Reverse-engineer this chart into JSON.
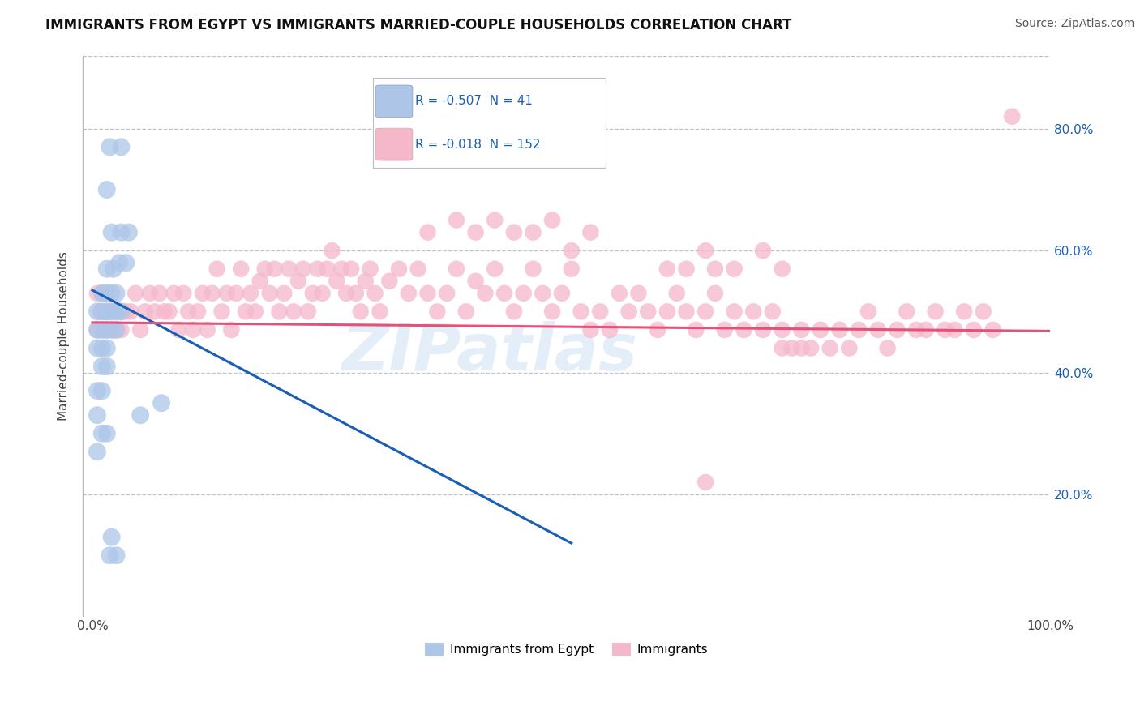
{
  "title": "IMMIGRANTS FROM EGYPT VS IMMIGRANTS MARRIED-COUPLE HOUSEHOLDS CORRELATION CHART",
  "source": "Source: ZipAtlas.com",
  "ylabel": "Married-couple Households",
  "legend_label1": "Immigrants from Egypt",
  "legend_label2": "Immigrants",
  "R1": "-0.507",
  "N1": "41",
  "R2": "-0.018",
  "N2": "152",
  "watermark": "ZIPatlas",
  "blue_color": "#adc6e8",
  "pink_color": "#f5b8cb",
  "blue_line_color": "#1a5fb4",
  "pink_line_color": "#e8507a",
  "legend_text_color": "#1a5fb4",
  "blue_scatter": [
    [
      0.018,
      0.77
    ],
    [
      0.03,
      0.77
    ],
    [
      0.015,
      0.7
    ],
    [
      0.02,
      0.63
    ],
    [
      0.03,
      0.63
    ],
    [
      0.038,
      0.63
    ],
    [
      0.015,
      0.57
    ],
    [
      0.022,
      0.57
    ],
    [
      0.028,
      0.58
    ],
    [
      0.035,
      0.58
    ],
    [
      0.01,
      0.53
    ],
    [
      0.015,
      0.53
    ],
    [
      0.02,
      0.53
    ],
    [
      0.025,
      0.53
    ],
    [
      0.005,
      0.5
    ],
    [
      0.01,
      0.5
    ],
    [
      0.015,
      0.5
    ],
    [
      0.02,
      0.5
    ],
    [
      0.025,
      0.5
    ],
    [
      0.03,
      0.5
    ],
    [
      0.005,
      0.47
    ],
    [
      0.01,
      0.47
    ],
    [
      0.015,
      0.47
    ],
    [
      0.02,
      0.47
    ],
    [
      0.025,
      0.47
    ],
    [
      0.005,
      0.44
    ],
    [
      0.01,
      0.44
    ],
    [
      0.015,
      0.44
    ],
    [
      0.01,
      0.41
    ],
    [
      0.015,
      0.41
    ],
    [
      0.005,
      0.37
    ],
    [
      0.01,
      0.37
    ],
    [
      0.005,
      0.33
    ],
    [
      0.01,
      0.3
    ],
    [
      0.015,
      0.3
    ],
    [
      0.005,
      0.27
    ],
    [
      0.018,
      0.1
    ],
    [
      0.05,
      0.33
    ],
    [
      0.072,
      0.35
    ],
    [
      0.02,
      0.13
    ],
    [
      0.025,
      0.1
    ]
  ],
  "pink_scatter": [
    [
      0.008,
      0.5
    ],
    [
      0.015,
      0.5
    ],
    [
      0.02,
      0.5
    ],
    [
      0.025,
      0.5
    ],
    [
      0.03,
      0.5
    ],
    [
      0.005,
      0.47
    ],
    [
      0.01,
      0.47
    ],
    [
      0.015,
      0.47
    ],
    [
      0.02,
      0.47
    ],
    [
      0.025,
      0.47
    ],
    [
      0.03,
      0.47
    ],
    [
      0.005,
      0.53
    ],
    [
      0.01,
      0.53
    ],
    [
      0.015,
      0.53
    ],
    [
      0.035,
      0.5
    ],
    [
      0.04,
      0.5
    ],
    [
      0.045,
      0.53
    ],
    [
      0.05,
      0.47
    ],
    [
      0.055,
      0.5
    ],
    [
      0.06,
      0.53
    ],
    [
      0.065,
      0.5
    ],
    [
      0.07,
      0.53
    ],
    [
      0.075,
      0.5
    ],
    [
      0.08,
      0.5
    ],
    [
      0.085,
      0.53
    ],
    [
      0.09,
      0.47
    ],
    [
      0.095,
      0.53
    ],
    [
      0.1,
      0.5
    ],
    [
      0.105,
      0.47
    ],
    [
      0.11,
      0.5
    ],
    [
      0.115,
      0.53
    ],
    [
      0.12,
      0.47
    ],
    [
      0.125,
      0.53
    ],
    [
      0.13,
      0.57
    ],
    [
      0.135,
      0.5
    ],
    [
      0.14,
      0.53
    ],
    [
      0.145,
      0.47
    ],
    [
      0.15,
      0.53
    ],
    [
      0.155,
      0.57
    ],
    [
      0.16,
      0.5
    ],
    [
      0.165,
      0.53
    ],
    [
      0.17,
      0.5
    ],
    [
      0.175,
      0.55
    ],
    [
      0.18,
      0.57
    ],
    [
      0.185,
      0.53
    ],
    [
      0.19,
      0.57
    ],
    [
      0.195,
      0.5
    ],
    [
      0.2,
      0.53
    ],
    [
      0.205,
      0.57
    ],
    [
      0.21,
      0.5
    ],
    [
      0.215,
      0.55
    ],
    [
      0.22,
      0.57
    ],
    [
      0.225,
      0.5
    ],
    [
      0.23,
      0.53
    ],
    [
      0.235,
      0.57
    ],
    [
      0.24,
      0.53
    ],
    [
      0.245,
      0.57
    ],
    [
      0.25,
      0.6
    ],
    [
      0.255,
      0.55
    ],
    [
      0.26,
      0.57
    ],
    [
      0.265,
      0.53
    ],
    [
      0.27,
      0.57
    ],
    [
      0.275,
      0.53
    ],
    [
      0.28,
      0.5
    ],
    [
      0.285,
      0.55
    ],
    [
      0.29,
      0.57
    ],
    [
      0.295,
      0.53
    ],
    [
      0.3,
      0.5
    ],
    [
      0.31,
      0.55
    ],
    [
      0.32,
      0.57
    ],
    [
      0.33,
      0.53
    ],
    [
      0.34,
      0.57
    ],
    [
      0.35,
      0.53
    ],
    [
      0.36,
      0.5
    ],
    [
      0.37,
      0.53
    ],
    [
      0.38,
      0.57
    ],
    [
      0.39,
      0.5
    ],
    [
      0.4,
      0.55
    ],
    [
      0.41,
      0.53
    ],
    [
      0.42,
      0.57
    ],
    [
      0.43,
      0.53
    ],
    [
      0.44,
      0.5
    ],
    [
      0.45,
      0.53
    ],
    [
      0.46,
      0.57
    ],
    [
      0.47,
      0.53
    ],
    [
      0.48,
      0.5
    ],
    [
      0.49,
      0.53
    ],
    [
      0.5,
      0.57
    ],
    [
      0.51,
      0.5
    ],
    [
      0.52,
      0.47
    ],
    [
      0.53,
      0.5
    ],
    [
      0.54,
      0.47
    ],
    [
      0.55,
      0.53
    ],
    [
      0.56,
      0.5
    ],
    [
      0.57,
      0.53
    ],
    [
      0.58,
      0.5
    ],
    [
      0.59,
      0.47
    ],
    [
      0.6,
      0.5
    ],
    [
      0.61,
      0.53
    ],
    [
      0.62,
      0.5
    ],
    [
      0.63,
      0.47
    ],
    [
      0.64,
      0.5
    ],
    [
      0.65,
      0.53
    ],
    [
      0.66,
      0.47
    ],
    [
      0.67,
      0.5
    ],
    [
      0.68,
      0.47
    ],
    [
      0.69,
      0.5
    ],
    [
      0.7,
      0.47
    ],
    [
      0.71,
      0.5
    ],
    [
      0.72,
      0.47
    ],
    [
      0.73,
      0.44
    ],
    [
      0.74,
      0.47
    ],
    [
      0.75,
      0.44
    ],
    [
      0.76,
      0.47
    ],
    [
      0.77,
      0.44
    ],
    [
      0.78,
      0.47
    ],
    [
      0.79,
      0.44
    ],
    [
      0.8,
      0.47
    ],
    [
      0.81,
      0.5
    ],
    [
      0.82,
      0.47
    ],
    [
      0.83,
      0.44
    ],
    [
      0.84,
      0.47
    ],
    [
      0.85,
      0.5
    ],
    [
      0.86,
      0.47
    ],
    [
      0.87,
      0.47
    ],
    [
      0.88,
      0.5
    ],
    [
      0.89,
      0.47
    ],
    [
      0.9,
      0.47
    ],
    [
      0.91,
      0.5
    ],
    [
      0.92,
      0.47
    ],
    [
      0.93,
      0.5
    ],
    [
      0.94,
      0.47
    ],
    [
      0.96,
      0.82
    ],
    [
      0.35,
      0.63
    ],
    [
      0.38,
      0.65
    ],
    [
      0.4,
      0.63
    ],
    [
      0.42,
      0.65
    ],
    [
      0.44,
      0.63
    ],
    [
      0.46,
      0.63
    ],
    [
      0.48,
      0.65
    ],
    [
      0.5,
      0.6
    ],
    [
      0.52,
      0.63
    ],
    [
      0.6,
      0.57
    ],
    [
      0.62,
      0.57
    ],
    [
      0.64,
      0.6
    ],
    [
      0.65,
      0.57
    ],
    [
      0.67,
      0.57
    ],
    [
      0.7,
      0.6
    ],
    [
      0.72,
      0.57
    ],
    [
      0.72,
      0.44
    ],
    [
      0.74,
      0.44
    ],
    [
      0.64,
      0.22
    ]
  ],
  "blue_trendline": [
    [
      0.0,
      0.535
    ],
    [
      0.5,
      0.12
    ]
  ],
  "pink_trendline": [
    [
      0.0,
      0.482
    ],
    [
      1.0,
      0.468
    ]
  ],
  "xlim": [
    -0.01,
    1.0
  ],
  "ylim": [
    0.0,
    0.92
  ],
  "ytick_positions": [
    0.2,
    0.4,
    0.6,
    0.8
  ],
  "ytick_labels": [
    "20.0%",
    "40.0%",
    "60.0%",
    "80.0%"
  ],
  "xtick_positions": [
    0.0,
    1.0
  ],
  "xtick_labels": [
    "0.0%",
    "100.0%"
  ],
  "grid_color": "#c0c0cc",
  "background_color": "#ffffff",
  "title_fontsize": 12,
  "source_fontsize": 10,
  "tick_fontsize": 11
}
